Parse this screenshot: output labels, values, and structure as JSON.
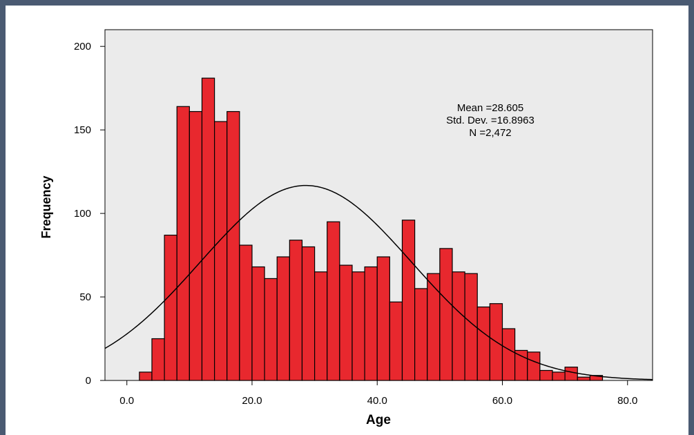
{
  "chart_data": {
    "type": "bar",
    "xlabel": "Age",
    "ylabel": "Frequency",
    "xlim": [
      -3.5,
      84
    ],
    "ylim": [
      0,
      210
    ],
    "x_ticks": [
      {
        "value": 0,
        "label": "0.0"
      },
      {
        "value": 20,
        "label": "20.0"
      },
      {
        "value": 40,
        "label": "40.0"
      },
      {
        "value": 60,
        "label": "60.0"
      },
      {
        "value": 80,
        "label": "80.0"
      }
    ],
    "y_ticks": [
      {
        "value": 0,
        "label": "0"
      },
      {
        "value": 50,
        "label": "50"
      },
      {
        "value": 100,
        "label": "100"
      },
      {
        "value": 150,
        "label": "150"
      },
      {
        "value": 200,
        "label": "200"
      }
    ],
    "bin_width": 2,
    "bins": [
      {
        "x0": 2,
        "x1": 4,
        "count": 5
      },
      {
        "x0": 4,
        "x1": 6,
        "count": 25
      },
      {
        "x0": 6,
        "x1": 8,
        "count": 87
      },
      {
        "x0": 8,
        "x1": 10,
        "count": 164
      },
      {
        "x0": 10,
        "x1": 12,
        "count": 161
      },
      {
        "x0": 12,
        "x1": 14,
        "count": 181
      },
      {
        "x0": 14,
        "x1": 16,
        "count": 155
      },
      {
        "x0": 16,
        "x1": 18,
        "count": 161
      },
      {
        "x0": 18,
        "x1": 20,
        "count": 81
      },
      {
        "x0": 20,
        "x1": 22,
        "count": 68
      },
      {
        "x0": 22,
        "x1": 24,
        "count": 61
      },
      {
        "x0": 24,
        "x1": 26,
        "count": 74
      },
      {
        "x0": 26,
        "x1": 28,
        "count": 84
      },
      {
        "x0": 28,
        "x1": 30,
        "count": 80
      },
      {
        "x0": 30,
        "x1": 32,
        "count": 65
      },
      {
        "x0": 32,
        "x1": 34,
        "count": 95
      },
      {
        "x0": 34,
        "x1": 36,
        "count": 69
      },
      {
        "x0": 36,
        "x1": 38,
        "count": 65
      },
      {
        "x0": 38,
        "x1": 40,
        "count": 68
      },
      {
        "x0": 40,
        "x1": 42,
        "count": 74
      },
      {
        "x0": 42,
        "x1": 44,
        "count": 47
      },
      {
        "x0": 44,
        "x1": 46,
        "count": 96
      },
      {
        "x0": 46,
        "x1": 48,
        "count": 55
      },
      {
        "x0": 48,
        "x1": 50,
        "count": 64
      },
      {
        "x0": 50,
        "x1": 52,
        "count": 79
      },
      {
        "x0": 52,
        "x1": 54,
        "count": 65
      },
      {
        "x0": 54,
        "x1": 56,
        "count": 64
      },
      {
        "x0": 56,
        "x1": 58,
        "count": 44
      },
      {
        "x0": 58,
        "x1": 60,
        "count": 46
      },
      {
        "x0": 60,
        "x1": 62,
        "count": 31
      },
      {
        "x0": 62,
        "x1": 64,
        "count": 18
      },
      {
        "x0": 64,
        "x1": 66,
        "count": 17
      },
      {
        "x0": 66,
        "x1": 68,
        "count": 6
      },
      {
        "x0": 68,
        "x1": 70,
        "count": 5
      },
      {
        "x0": 70,
        "x1": 72,
        "count": 8
      },
      {
        "x0": 72,
        "x1": 74,
        "count": 2
      },
      {
        "x0": 74,
        "x1": 76,
        "count": 3
      }
    ],
    "normal_curve": {
      "mean": 28.605,
      "std_dev": 16.8963,
      "n": 2472
    },
    "stats_lines": [
      "Mean =28.605",
      "Std. Dev. =16.8963",
      "N =2,472"
    ],
    "grid": false,
    "colors": {
      "bar_fill": "#e8282e",
      "bar_stroke": "#000000",
      "plot_bg": "#ebebeb",
      "frame": "#4a5a72",
      "curve": "#000000"
    }
  }
}
